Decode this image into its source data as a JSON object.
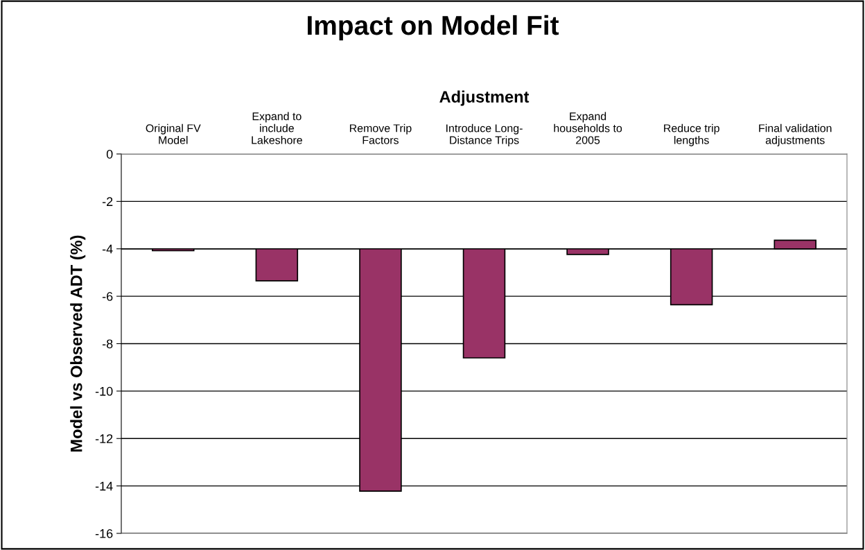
{
  "chart_data": {
    "type": "bar",
    "title": "Impact on Model Fit",
    "xlabel": "Adjustment",
    "ylabel": "Model vs Observed ADT (%)",
    "categories": [
      "Original FV\nModel",
      "Expand to\ninclude\nLakeshore",
      "Remove Trip\nFactors",
      "Introduce Long-\nDistance Trips",
      "Expand\nhouseholds to\n2005",
      "Reduce trip\nlengths",
      "Final validation\nadjustments"
    ],
    "base": [
      -4,
      -4,
      -4,
      -4,
      -4,
      -4,
      -4
    ],
    "values": [
      -0.08,
      -1.35,
      -10.22,
      -4.6,
      -0.24,
      -2.36,
      0.36
    ],
    "color": "#993366",
    "ylim": [
      -16,
      0
    ],
    "yticks": [
      -16,
      -14,
      -12,
      -10,
      -8,
      -6,
      -4,
      -2,
      0
    ],
    "grid": "y",
    "ref_lines": [
      {
        "axis": "y",
        "value": -4,
        "color": "#000000"
      }
    ]
  }
}
